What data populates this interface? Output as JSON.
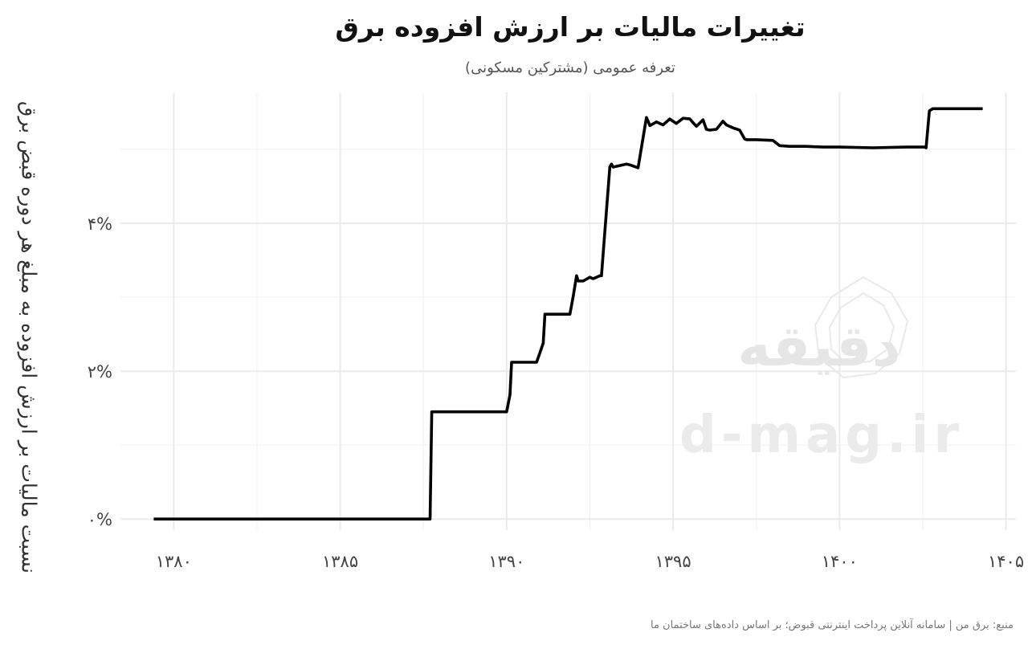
{
  "chart_data": {
    "type": "line",
    "title": "تغییرات مالیات بر ارزش افزوده برق",
    "subtitle": "تعرفه عمومی (مشترکین مسکونی)",
    "xlabel": "",
    "ylabel": "نسبت مالیات بر ارزش افزوده به مبلغ هر دوره قبض برق",
    "caption": "منبع: برق من | سامانه آنلاین پرداخت اینترنتی قبوض؛ بر اساس داده‌های ساختمان ما",
    "xlim": [
      1378.4,
      1405.3
    ],
    "ylim": [
      -0.0015,
      0.0577
    ],
    "x_ticks": [
      1380,
      1385,
      1390,
      1395,
      1400,
      1405
    ],
    "x_tick_labels": [
      "۱۳۸۰",
      "۱۳۸۵",
      "۱۳۹۰",
      "۱۳۹۵",
      "۱۴۰۰",
      "۱۴۰۵"
    ],
    "y_ticks": [
      0,
      0.02,
      0.04
    ],
    "y_tick_labels": [
      "۰%",
      "۲%",
      "۴%"
    ],
    "grid": true,
    "line_color": "#000000",
    "series": [
      {
        "x": [
          1379.4,
          1387.7,
          1387.75,
          1388.5,
          1388.6,
          1390.0,
          1390.1,
          1390.15,
          1390.9,
          1391.0,
          1391.1,
          1391.15,
          1391.9,
          1392.0,
          1392.1,
          1392.15,
          1392.3,
          1392.5,
          1392.6,
          1392.8,
          1392.85,
          1393.1,
          1393.15,
          1393.2,
          1393.6,
          1393.7,
          1393.95,
          1394.2,
          1394.25,
          1394.3,
          1394.5,
          1394.7,
          1394.9,
          1395.1,
          1395.3,
          1395.5,
          1395.7,
          1395.9,
          1396.0,
          1396.1,
          1396.3,
          1396.5,
          1396.6,
          1396.8,
          1397.0,
          1397.15,
          1397.2,
          1397.5,
          1398.0,
          1398.2,
          1398.5,
          1399.0,
          1399.5,
          1400.0,
          1401.0,
          1402.0,
          1402.55,
          1402.6,
          1402.7,
          1402.8,
          1404.3
        ],
        "y": [
          0,
          0,
          0.0145,
          0.0145,
          0.0145,
          0.0145,
          0.0168,
          0.0212,
          0.0212,
          0.0225,
          0.0238,
          0.0277,
          0.0277,
          0.0301,
          0.0329,
          0.0322,
          0.0322,
          0.0327,
          0.0325,
          0.0329,
          0.0329,
          0.0476,
          0.048,
          0.0476,
          0.048,
          0.0479,
          0.0475,
          0.0543,
          0.0538,
          0.0532,
          0.0537,
          0.0533,
          0.0541,
          0.0535,
          0.0542,
          0.0541,
          0.0531,
          0.054,
          0.0527,
          0.0526,
          0.0527,
          0.0538,
          0.0533,
          0.0529,
          0.0526,
          0.0514,
          0.0513,
          0.0513,
          0.0512,
          0.0505,
          0.0504,
          0.0504,
          0.0503,
          0.0503,
          0.0502,
          0.0503,
          0.0503,
          0.0502,
          0.0552,
          0.0555,
          0.0555
        ]
      }
    ]
  },
  "watermark": {
    "text": "d-mag.ir",
    "logo_text": "دقیقه"
  }
}
